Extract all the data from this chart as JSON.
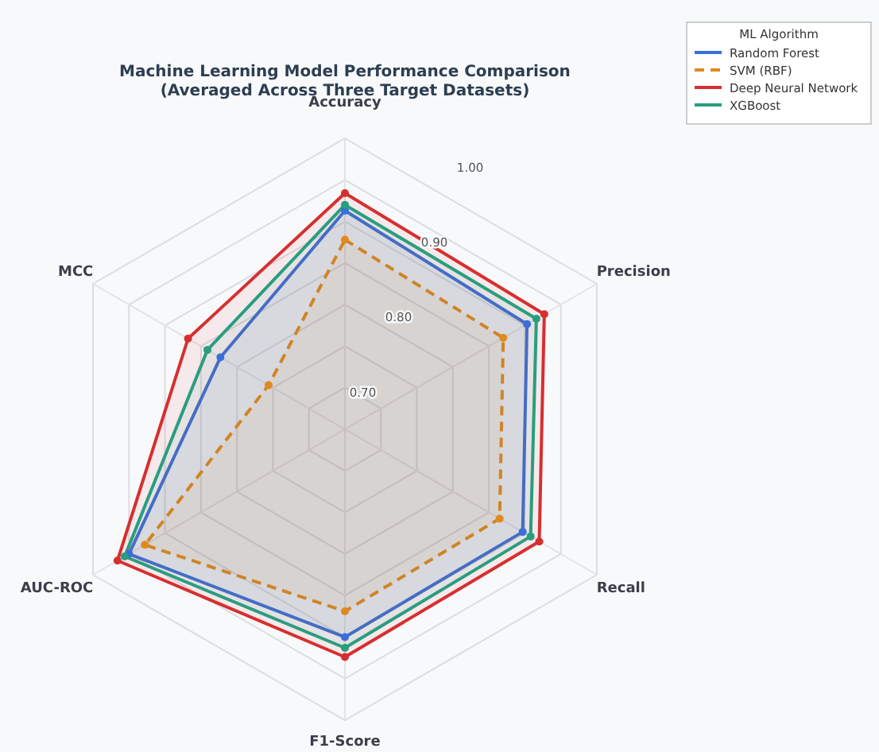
{
  "chart_data": {
    "type": "radar",
    "title": "Machine Learning Model Performance Comparison\n(Averaged Across Three Target Datasets)",
    "legend_title": "ML Algorithm",
    "legend": "top right",
    "marker": "circle",
    "grid": true,
    "categories": [
      "Accuracy",
      "Precision",
      "Recall",
      "F1-Score",
      "AUC-ROC",
      "MCC"
    ],
    "ylim": [
      0.65,
      1.0
    ],
    "yticks": [
      {
        "value": 0.7,
        "label": "0.70"
      },
      {
        "value": 0.8,
        "label": "0.80"
      },
      {
        "value": 0.9,
        "label": "0.90"
      },
      {
        "value": 1.0,
        "label": "1.00"
      }
    ],
    "series": [
      {
        "name": "Random Forest",
        "color": "#3b6fd8",
        "line_style": "solid",
        "values": [
          0.913,
          0.903,
          0.897,
          0.9,
          0.95,
          0.823
        ]
      },
      {
        "name": "SVM (RBF)",
        "color": "#e08a1e",
        "line_style": "dashed",
        "values": [
          0.878,
          0.87,
          0.865,
          0.869,
          0.928,
          0.756
        ]
      },
      {
        "name": "Deep Neural Network",
        "color": "#d62f2f",
        "line_style": "solid",
        "values": [
          0.934,
          0.927,
          0.92,
          0.924,
          0.966,
          0.868
        ]
      },
      {
        "name": "XGBoost",
        "color": "#2a9d7f",
        "line_style": "solid",
        "values": [
          0.92,
          0.916,
          0.908,
          0.913,
          0.956,
          0.841
        ]
      }
    ]
  }
}
